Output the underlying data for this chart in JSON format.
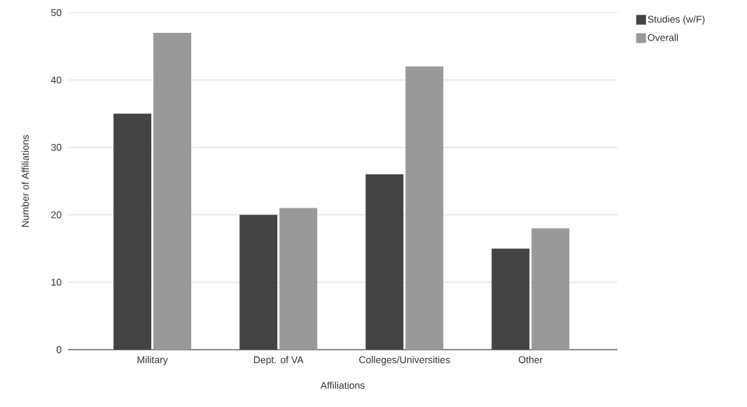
{
  "chart_data": {
    "type": "bar",
    "xlabel": "Affiliations",
    "ylabel": "Number of Affiliations",
    "categories": [
      "Military",
      "Dept. of VA",
      "Colleges/Universities",
      "Other"
    ],
    "series": [
      {
        "name": "Studies (w/F)",
        "color": "#444444",
        "values": [
          35,
          20,
          26,
          15
        ]
      },
      {
        "name": "Overall",
        "color": "#999999",
        "values": [
          47,
          21,
          42,
          18
        ]
      }
    ],
    "ylim": [
      0,
      50
    ],
    "yticks": [
      0,
      10,
      20,
      30,
      40,
      50
    ],
    "grid": "y",
    "legend": "top right"
  }
}
